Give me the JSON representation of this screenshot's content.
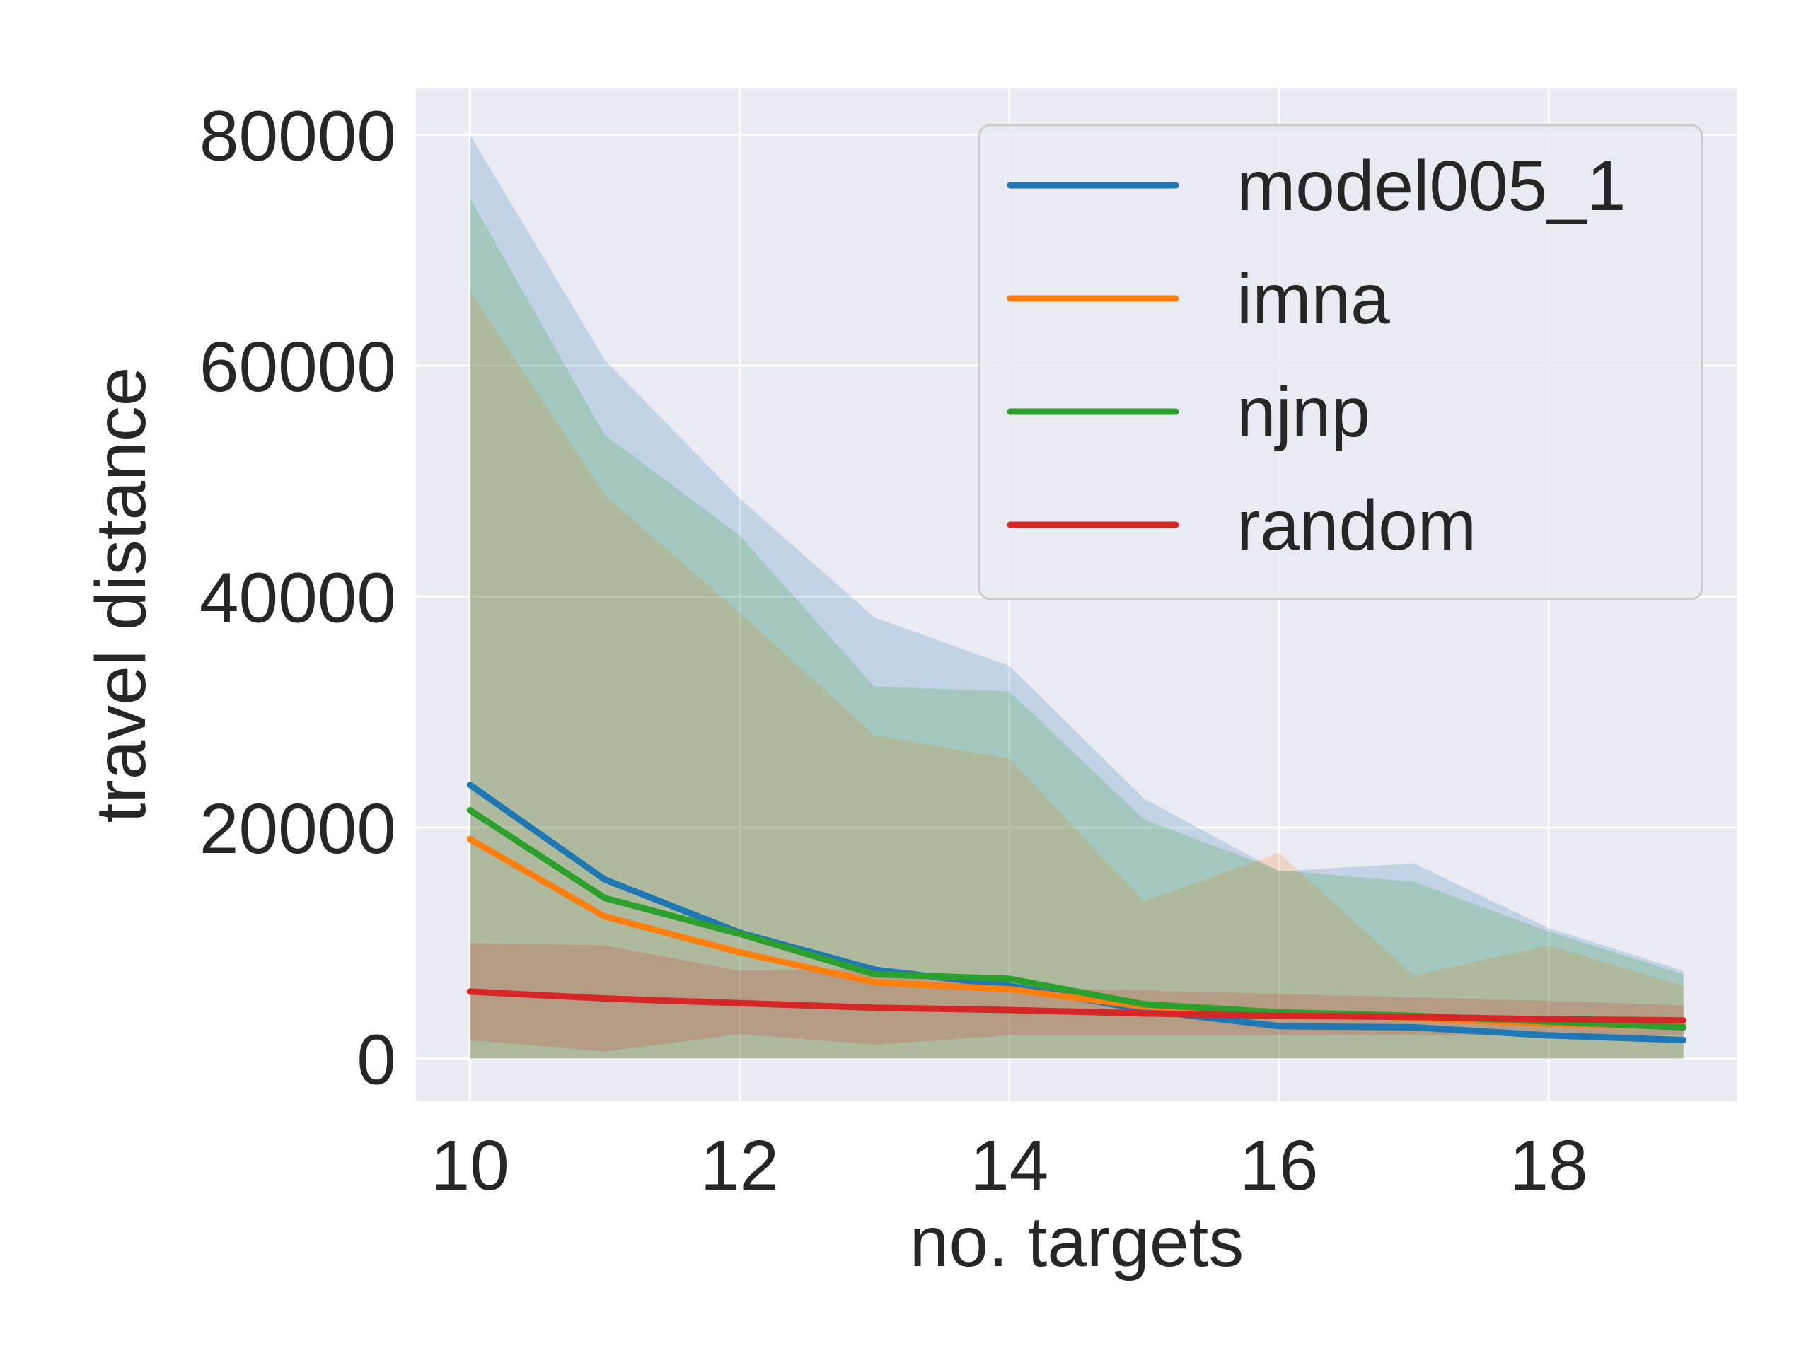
{
  "chart_data": {
    "type": "line",
    "xlabel": "no. targets",
    "ylabel": "travel distance",
    "xlim": [
      9.6,
      19.4
    ],
    "ylim": [
      -3700,
      84000
    ],
    "xticks": [
      10,
      12,
      14,
      16,
      18
    ],
    "yticks": [
      0,
      20000,
      40000,
      60000,
      80000
    ],
    "grid": true,
    "legend_position": "top-right",
    "x": [
      10,
      11,
      12,
      13,
      14,
      15,
      16,
      17,
      18,
      19
    ],
    "series": [
      {
        "name": "model005_1",
        "color": "#1f77b4",
        "values": [
          23700,
          15500,
          10900,
          7700,
          6300,
          4200,
          2800,
          2700,
          2000,
          1600
        ],
        "band_upper": [
          80000,
          60500,
          48500,
          38200,
          34000,
          22500,
          16200,
          16900,
          11300,
          7600
        ],
        "band_lower": [
          0,
          0,
          0,
          0,
          0,
          0,
          0,
          0,
          0,
          0
        ]
      },
      {
        "name": "imna",
        "color": "#ff7f0e",
        "values": [
          19000,
          12300,
          9200,
          6600,
          6000,
          4500,
          4000,
          3500,
          3000,
          2800
        ],
        "band_upper": [
          66500,
          48800,
          38600,
          28000,
          26000,
          13600,
          17800,
          7200,
          9800,
          6300
        ],
        "band_lower": [
          0,
          0,
          0,
          0,
          0,
          0,
          0,
          0,
          0,
          0
        ]
      },
      {
        "name": "njnp",
        "color": "#2ca02c",
        "values": [
          21500,
          13900,
          10800,
          7300,
          6900,
          4700,
          4000,
          3700,
          3200,
          2700
        ],
        "band_upper": [
          74500,
          54000,
          45300,
          32200,
          31800,
          20700,
          16300,
          15300,
          11000,
          7300
        ],
        "band_lower": [
          0,
          0,
          0,
          0,
          0,
          0,
          0,
          0,
          0,
          0
        ]
      },
      {
        "name": "random",
        "color": "#d62728",
        "values": [
          5800,
          5200,
          4800,
          4400,
          4200,
          3900,
          3700,
          3600,
          3400,
          3300
        ],
        "band_upper": [
          10000,
          9800,
          7600,
          7800,
          6200,
          5900,
          5600,
          5300,
          5000,
          4600
        ],
        "band_lower": [
          1600,
          600,
          2100,
          1200,
          2000,
          2000,
          2000,
          2000,
          2000,
          2000
        ]
      }
    ]
  }
}
